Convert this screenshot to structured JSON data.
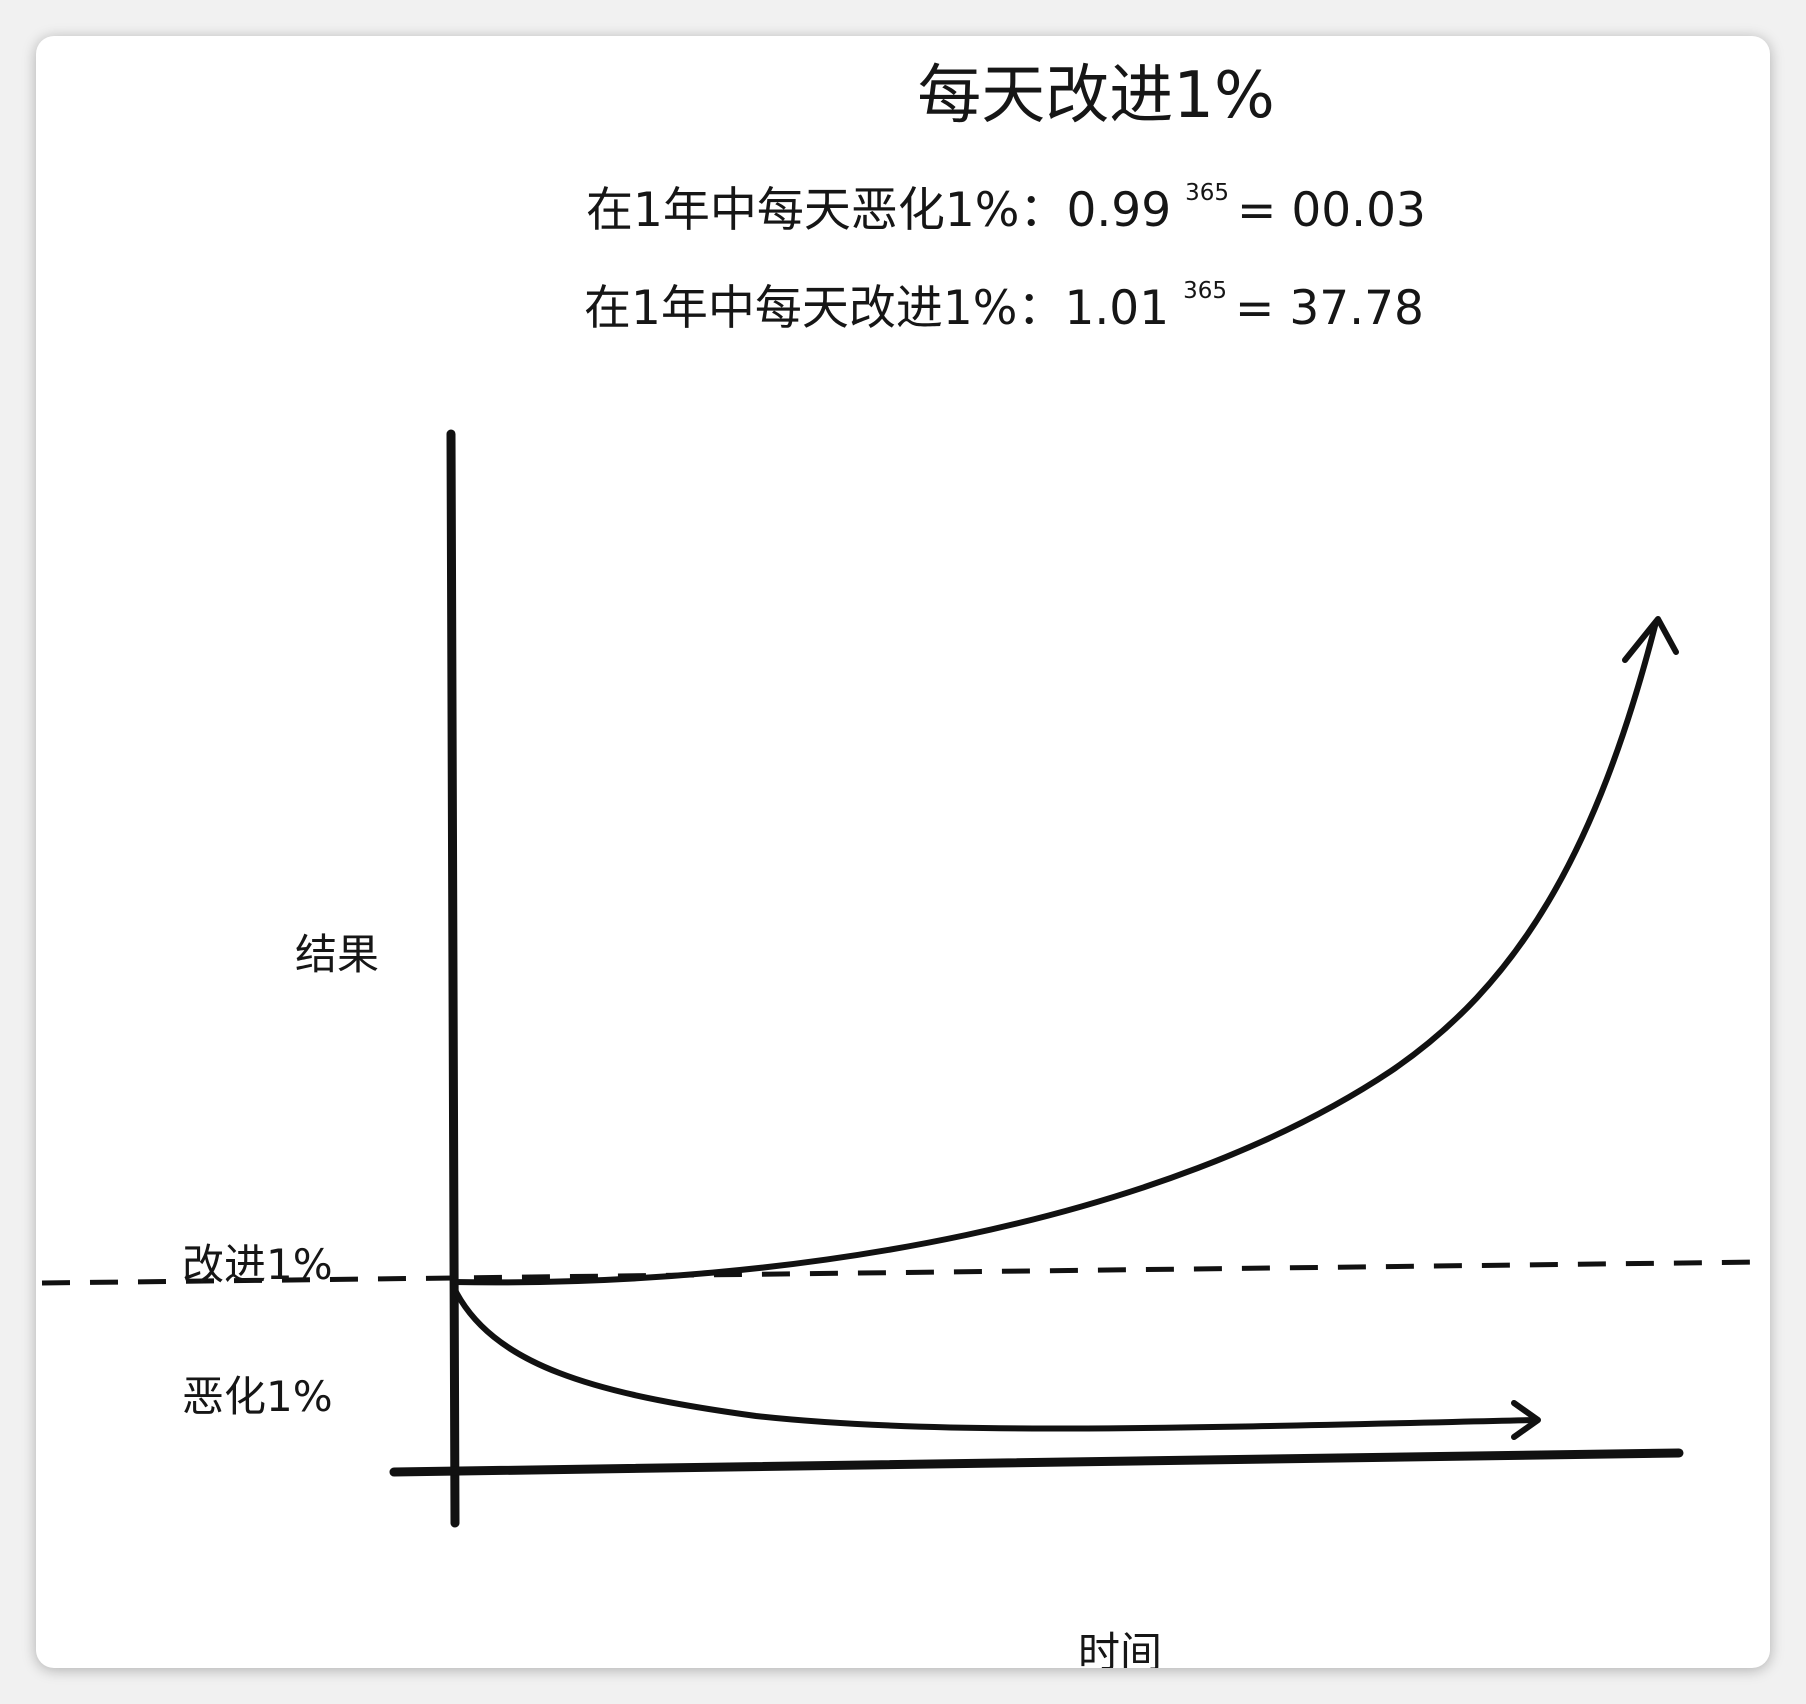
{
  "diagram": {
    "title": "每天改进1%",
    "worse_formula": {
      "prefix": "在1年中每天恶化1%：0.99",
      "exponent": "365",
      "result": "= 00.03"
    },
    "better_formula": {
      "prefix": "在1年中每天改进1%：1.01",
      "exponent": "365",
      "result": "= 37.78"
    },
    "y_axis_label": "结果",
    "x_axis_label": "时间",
    "improve_label": "改进1%",
    "worsen_label": "恶化1%"
  },
  "colors": {
    "ink": "#111111",
    "paper": "#ffffff",
    "frame": "#f1f1f1"
  }
}
